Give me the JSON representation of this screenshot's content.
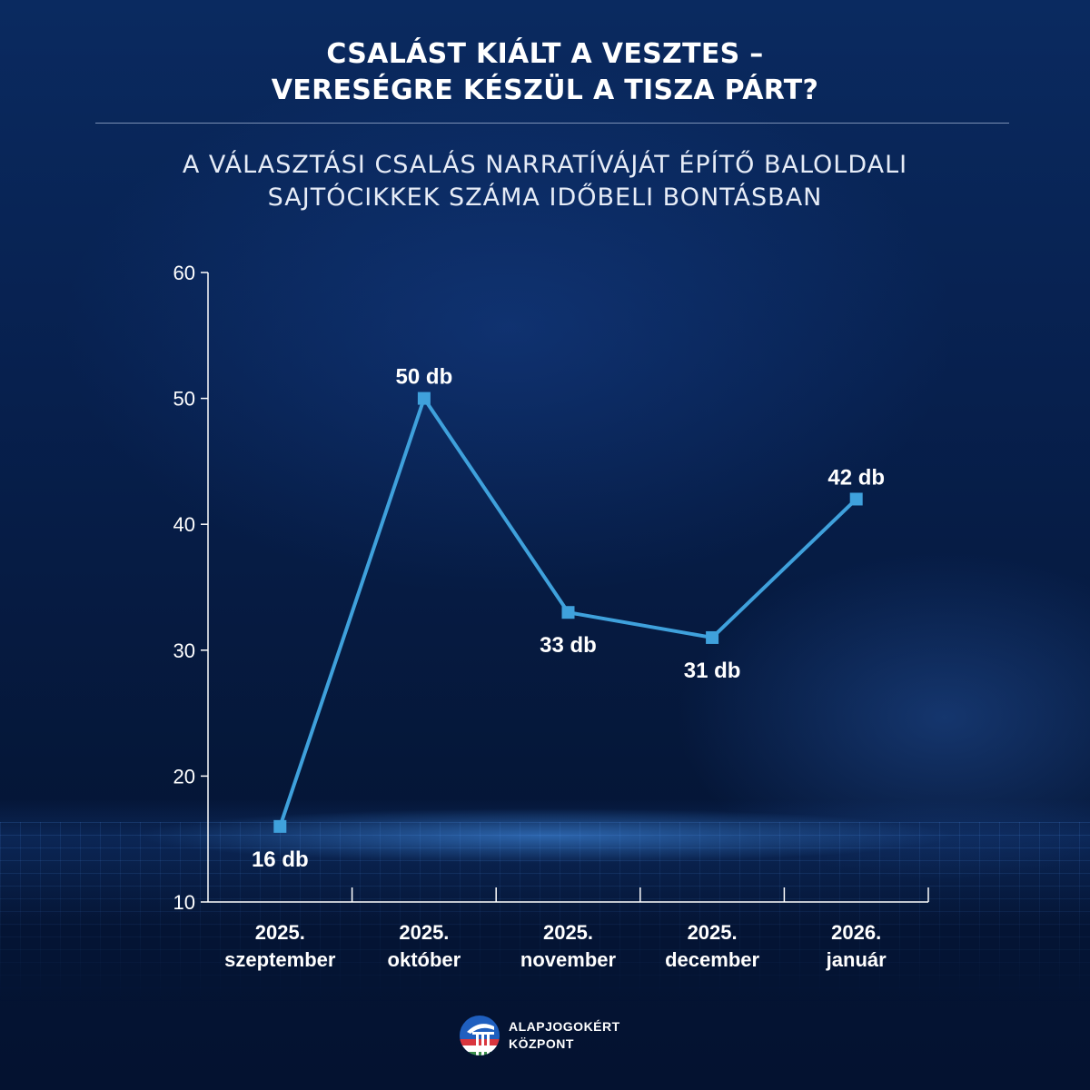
{
  "header": {
    "title_line1": "CSALÁST KIÁLT A VESZTES –",
    "title_line2": "VERESÉGRE KÉSZÜL A TISZA PÁRT?",
    "subtitle_line1": "A VÁLASZTÁSI CSALÁS NARRATÍVÁJÁT ÉPÍTŐ BALOLDALI",
    "subtitle_line2": "SAJTÓCIKKEK SZÁMA IDŐBELI BONTÁSBAN"
  },
  "chart_data": {
    "type": "line",
    "categories": [
      [
        "2025.",
        "szeptember"
      ],
      [
        "2025.",
        "október"
      ],
      [
        "2025.",
        "november"
      ],
      [
        "2025.",
        "december"
      ],
      [
        "2026.",
        "január"
      ]
    ],
    "values": [
      16,
      50,
      33,
      31,
      42
    ],
    "data_labels": [
      "16 db",
      "50 db",
      "33 db",
      "31 db",
      "42 db"
    ],
    "ylim": [
      10,
      60
    ],
    "yticks": [
      10,
      20,
      30,
      40,
      50,
      60
    ],
    "grid": false,
    "line_color": "#3fa1dc",
    "axis_color": "#ffffff",
    "label_color": "#ffffff"
  },
  "logo": {
    "line1": "ALAPJOGOKÉRT",
    "line2": "KÖZPONT"
  }
}
